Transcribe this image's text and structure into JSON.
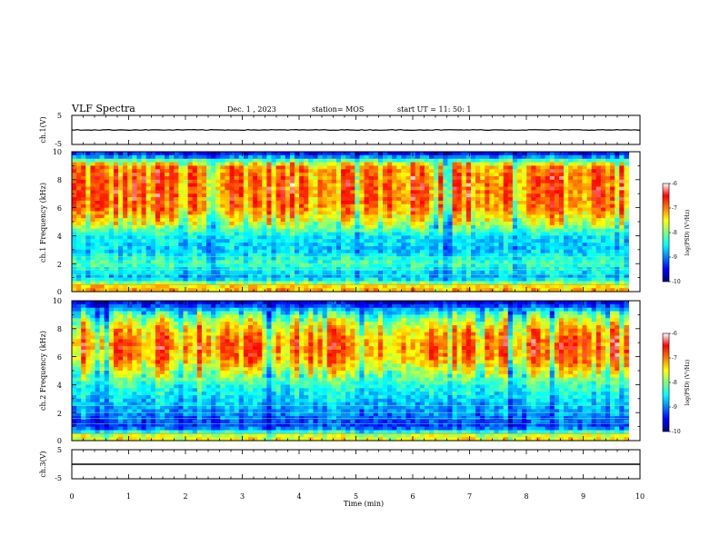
{
  "header": {
    "title": "VLF Spectra",
    "date": "Dec. 1 , 2023",
    "station": "station= MOS",
    "start_time": "start UT = 11: 50: 1"
  },
  "colorbar": {
    "label": "log(PSD) (V²/Hz)",
    "ticks": [
      "-6",
      "-7",
      "-8",
      "-9",
      "-10"
    ],
    "range": [
      -10,
      -6
    ],
    "colormap": [
      "#00007f",
      "#0000ff",
      "#007fff",
      "#00ffff",
      "#7fff7f",
      "#ffff00",
      "#ff7f00",
      "#ff0000",
      "#ffffff"
    ]
  },
  "chart_data": [
    {
      "type": "line",
      "panel": "ch.1 waveform",
      "ylabel": "ch.1(V)",
      "ylim": [
        -5,
        5
      ],
      "y_ticks": [
        "5",
        "-5"
      ],
      "x": [
        0,
        10
      ],
      "y": [
        0,
        0
      ]
    },
    {
      "type": "heatmap",
      "panel": "ch.1 spectrogram",
      "ylabel": "ch.1 Frequency (kHz)",
      "xlim": [
        0,
        9.8
      ],
      "ylim": [
        0,
        10
      ],
      "y_ticks": [
        "10",
        "8",
        "6",
        "4",
        "2",
        "0"
      ],
      "value_range": [
        -10,
        -6
      ],
      "profile": {
        "freq_khz": [
          0.3,
          1,
          2,
          3,
          4,
          5,
          6,
          7,
          8,
          9,
          9.8
        ],
        "log_psd": [
          -7.2,
          -8.8,
          -8.2,
          -8.7,
          -8.5,
          -7.6,
          -7.0,
          -6.9,
          -6.9,
          -7.1,
          -9.4
        ]
      }
    },
    {
      "type": "heatmap",
      "panel": "ch.2 spectrogram",
      "ylabel": "ch.2 Frequency (kHz)",
      "xlim": [
        0,
        9.8
      ],
      "ylim": [
        0,
        10
      ],
      "y_ticks": [
        "10",
        "8",
        "6",
        "4",
        "2",
        "0"
      ],
      "value_range": [
        -10,
        -6
      ],
      "profile": {
        "freq_khz": [
          0.3,
          1,
          2,
          3,
          4,
          5,
          6,
          7,
          8,
          9,
          9.8
        ],
        "log_psd": [
          -7.5,
          -9.3,
          -8.9,
          -8.6,
          -8.3,
          -7.6,
          -7.0,
          -6.9,
          -7.3,
          -8.1,
          -9.5
        ]
      }
    },
    {
      "type": "line",
      "panel": "ch.3 waveform",
      "ylabel": "ch.3(V)",
      "ylim": [
        -5,
        5
      ],
      "y_ticks": [
        "5",
        "-5"
      ],
      "x": [
        0,
        10
      ],
      "y": [
        0,
        0
      ]
    }
  ],
  "x_axis": {
    "label": "Time (min)",
    "ticks": [
      "0",
      "1",
      "2",
      "3",
      "4",
      "5",
      "6",
      "7",
      "8",
      "9",
      "10"
    ],
    "range": [
      0,
      10
    ]
  }
}
